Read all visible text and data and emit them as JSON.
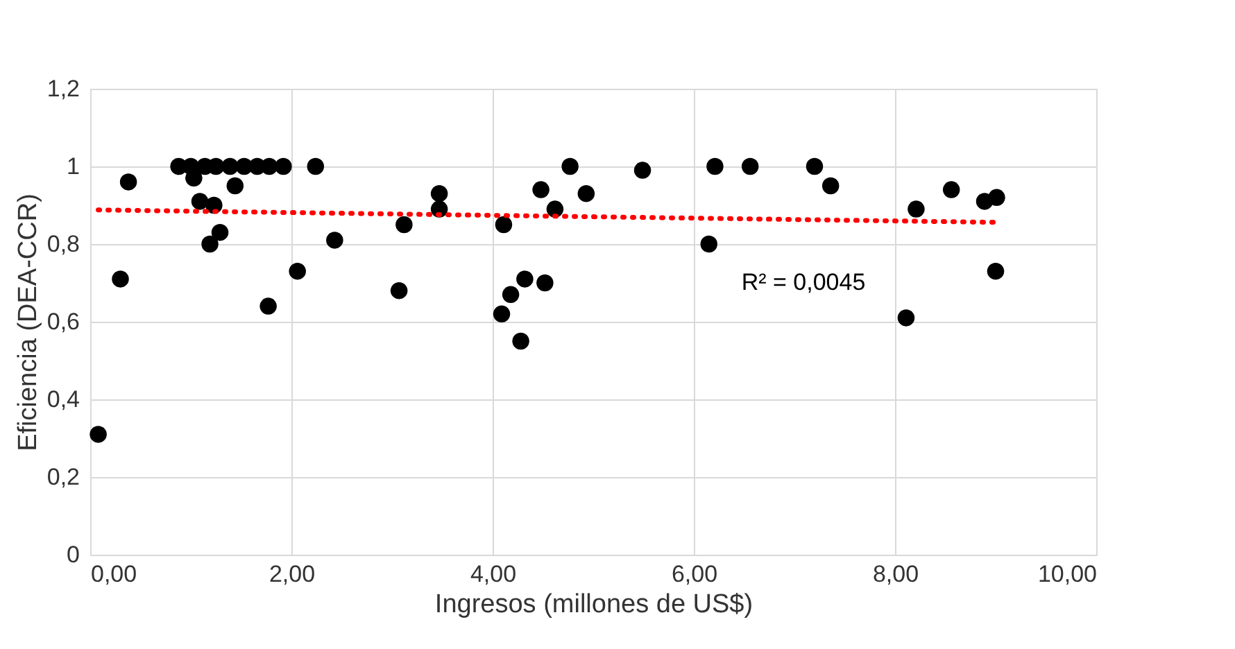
{
  "chart_data": {
    "type": "scatter",
    "xlabel": "Ingresos (millones de US$)",
    "ylabel": "Eficiencia (DEA-CCR)",
    "xlim": [
      0,
      10
    ],
    "xticks": [
      {
        "value": 0,
        "label": "0,00"
      },
      {
        "value": 2,
        "label": "2,00"
      },
      {
        "value": 4,
        "label": "4,00"
      },
      {
        "value": 6,
        "label": "6,00"
      },
      {
        "value": 8,
        "label": "8,00"
      },
      {
        "value": 10,
        "label": "10,00"
      }
    ],
    "ylim": [
      0,
      1.2
    ],
    "yticks": [
      0,
      {
        "value": 0.2,
        "label": "0,2"
      },
      {
        "value": 0.4,
        "label": "0,4"
      },
      {
        "value": 0.6,
        "label": "0,6"
      },
      {
        "value": 0.8,
        "label": "0,8"
      },
      1,
      {
        "value": 1.2,
        "label": "1,2"
      }
    ],
    "grid": true,
    "annotations": [
      "R² = 0,0045"
    ],
    "series": [
      {
        "color": "#000000",
        "marker": "circle",
        "x": [
          0.08,
          0.3,
          0.38,
          0.88,
          1.0,
          1.14,
          1.25,
          1.39,
          1.53,
          1.66,
          1.78,
          1.92,
          2.24,
          1.03,
          1.44,
          1.09,
          1.23,
          1.29,
          1.19,
          1.77,
          2.06,
          2.43,
          3.12,
          3.07,
          3.47,
          3.47,
          4.11,
          4.32,
          4.18,
          4.09,
          4.28,
          4.52,
          4.48,
          4.77,
          4.93,
          4.62,
          5.49,
          6.21,
          6.56,
          7.2,
          7.36,
          6.15,
          8.21,
          8.56,
          8.11,
          8.89,
          9.01,
          9.0
        ],
        "values": [
          0.31,
          0.71,
          0.96,
          1.0,
          1.0,
          1.0,
          1.0,
          1.0,
          1.0,
          1.0,
          1.0,
          1.0,
          1.0,
          0.97,
          0.95,
          0.91,
          0.9,
          0.83,
          0.8,
          0.64,
          0.73,
          0.81,
          0.85,
          0.68,
          0.93,
          0.89,
          0.85,
          0.71,
          0.67,
          0.62,
          0.55,
          0.7,
          0.94,
          1.0,
          0.93,
          0.89,
          0.99,
          1.0,
          1.0,
          1.0,
          0.95,
          0.8,
          0.89,
          0.94,
          0.61,
          0.91,
          0.92,
          0.73
        ]
      },
      {
        "type": "line",
        "color": "#ff0000",
        "line_style": "dotted",
        "marker": "none",
        "x": [
          0.08,
          9.01
        ],
        "values": [
          0.888,
          0.856
        ]
      }
    ]
  }
}
